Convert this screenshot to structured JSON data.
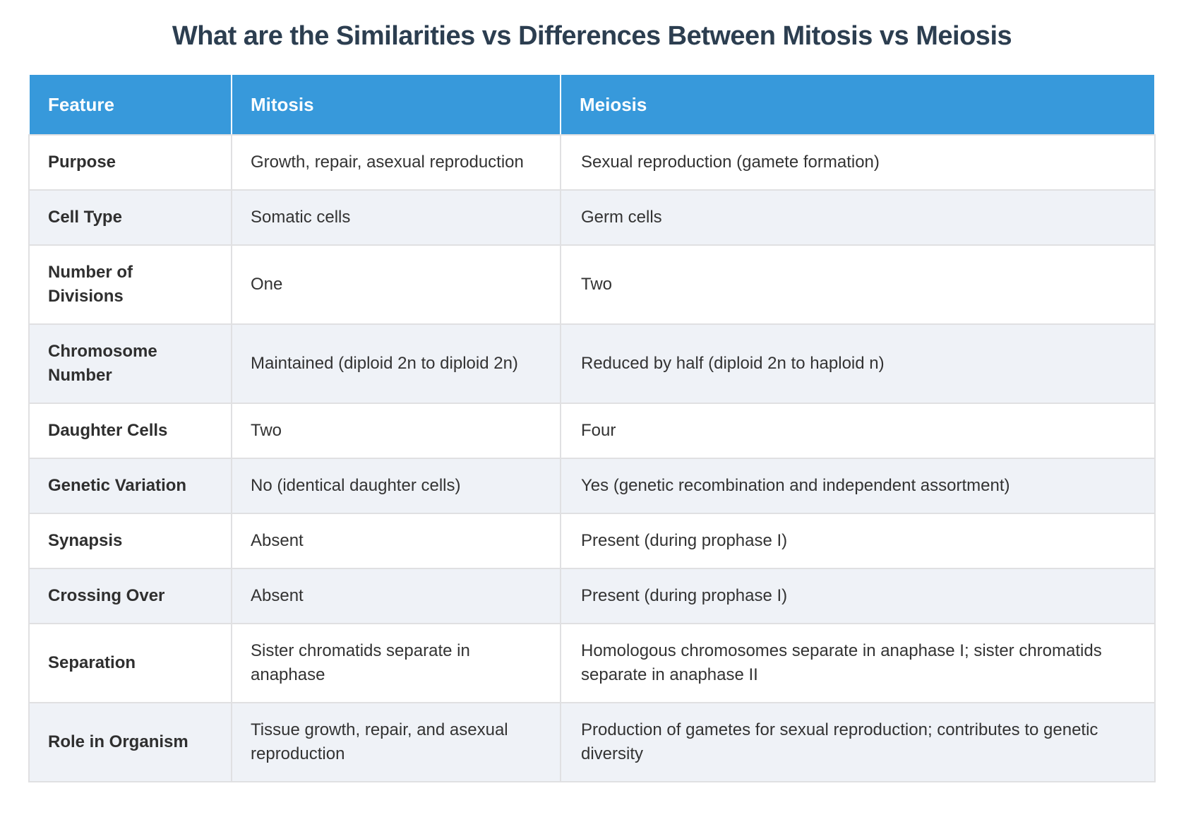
{
  "title": "What are the Similarities vs Differences Between Mitosis vs Meiosis",
  "colors": {
    "header_bg": "#3799db",
    "header_text": "#ffffff",
    "row_bg": "#ffffff",
    "alt_row_bg": "#eff2f7",
    "border": "#e0e0e2",
    "title_text": "#2c3e50",
    "body_text": "#333333"
  },
  "table": {
    "columns": [
      "Feature",
      "Mitosis",
      "Meiosis"
    ],
    "rows": [
      {
        "feature": "Purpose",
        "mitosis": "Growth, repair, asexual reproduction",
        "meiosis": "Sexual reproduction (gamete formation)"
      },
      {
        "feature": "Cell Type",
        "mitosis": "Somatic cells",
        "meiosis": "Germ cells"
      },
      {
        "feature": "Number of Divisions",
        "mitosis": "One",
        "meiosis": "Two"
      },
      {
        "feature": "Chromosome Number",
        "mitosis": "Maintained (diploid 2n to diploid 2n)",
        "meiosis": "Reduced by half (diploid 2n to haploid n)"
      },
      {
        "feature": "Daughter Cells",
        "mitosis": "Two",
        "meiosis": "Four"
      },
      {
        "feature": "Genetic Variation",
        "mitosis": "No (identical daughter cells)",
        "meiosis": "Yes (genetic recombination and independent assortment)"
      },
      {
        "feature": "Synapsis",
        "mitosis": "Absent",
        "meiosis": "Present (during prophase I)"
      },
      {
        "feature": "Crossing Over",
        "mitosis": "Absent",
        "meiosis": "Present (during prophase I)"
      },
      {
        "feature": "Separation",
        "mitosis": "Sister chromatids separate in anaphase",
        "meiosis": "Homologous chromosomes separate in anaphase I; sister chromatids separate in anaphase II"
      },
      {
        "feature": "Role in Organism",
        "mitosis": "Tissue growth, repair, and asexual reproduction",
        "meiosis": "Production of gametes for sexual reproduction; contributes to genetic diversity"
      }
    ]
  }
}
